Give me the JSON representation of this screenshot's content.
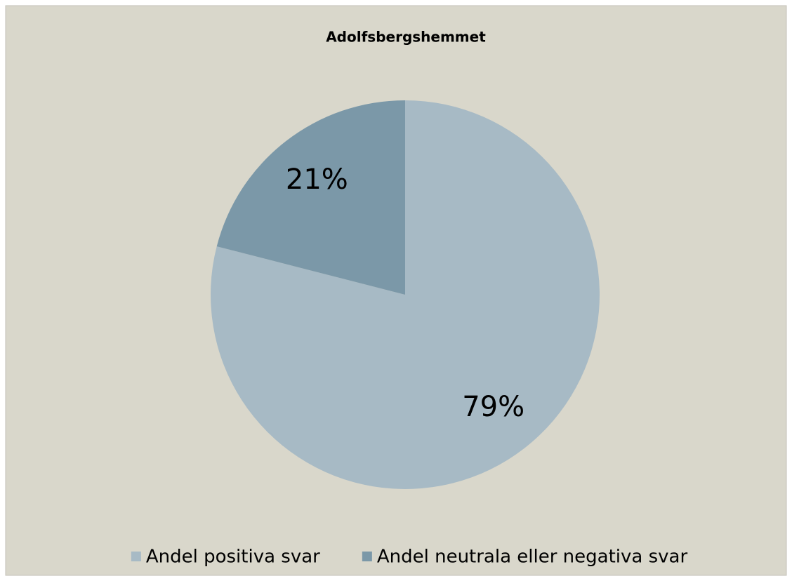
{
  "chart_data": {
    "type": "pie",
    "title": "Adolfsbergshemmet",
    "categories": [
      "Andel positiva svar",
      "Andel neutrala eller negativa svar"
    ],
    "values": [
      79,
      21
    ],
    "value_labels": [
      "79%",
      "21%"
    ],
    "colors": [
      "#a7bac5",
      "#7b98a8"
    ],
    "legend": "bottom"
  }
}
